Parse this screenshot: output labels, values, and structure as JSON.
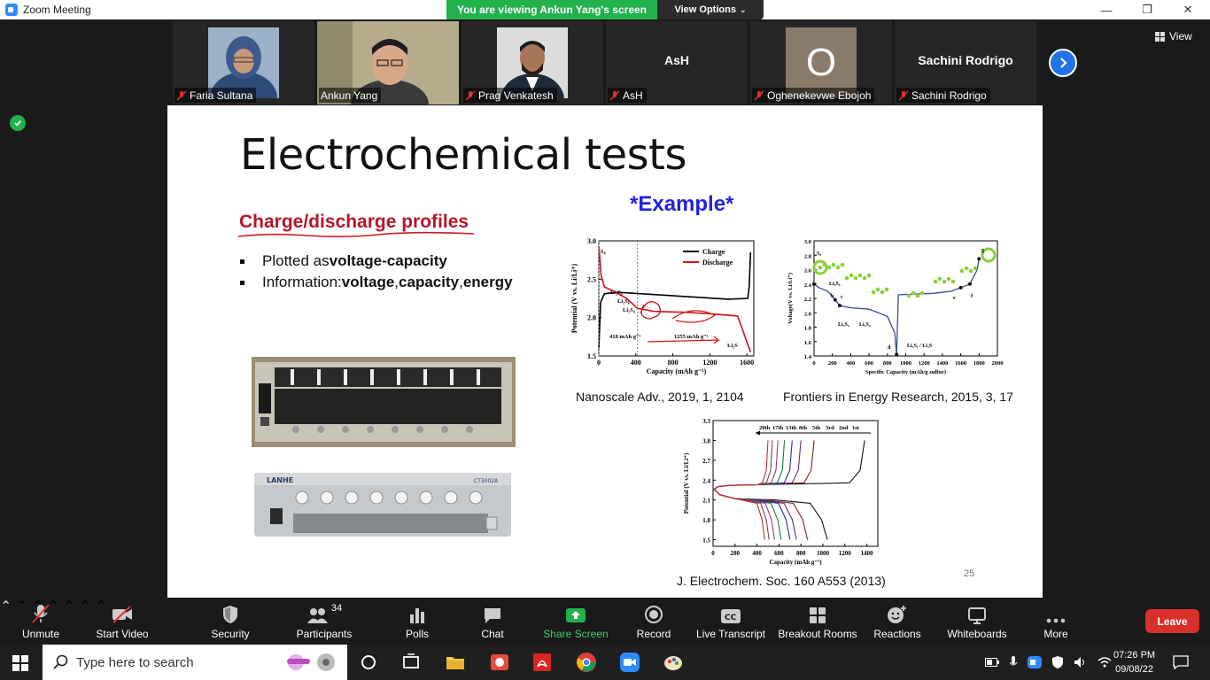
{
  "window": {
    "title": "Zoom Meeting",
    "viewing_banner": "You are viewing Ankun Yang's screen",
    "view_options": "View Options",
    "minimize": "—",
    "maximize": "❐",
    "close": "✕"
  },
  "gallery": {
    "view_label": "View",
    "participants": [
      {
        "name": "Faria Sultana",
        "muted": true
      },
      {
        "name": "Ankun Yang",
        "muted": false
      },
      {
        "name": "Prag Venkatesh",
        "muted": true
      },
      {
        "name": "AsH",
        "muted": true,
        "center_name": "AsH"
      },
      {
        "name": "Oghenekevwe Ebojoh",
        "muted": true,
        "initial": "O"
      },
      {
        "name": "Sachini Rodrigo",
        "muted": true,
        "center_name": "Sachini Rodrigo"
      }
    ]
  },
  "slide": {
    "title": "Electrochemical tests",
    "example_label": "*Example*",
    "section_heading": "Charge/discharge profiles",
    "bullets": [
      {
        "prefix": "Plotted as ",
        "bold": "voltage-capacity"
      },
      {
        "prefix": "Information: ",
        "bold1": "voltage",
        "sep1": ", ",
        "bold2": "capacity",
        "sep2": ", ",
        "bold3": "energy"
      }
    ],
    "captions": {
      "fig1": "Nanoscale Adv., 2019, 1, 2104",
      "fig2": "Frontiers in Energy Research, 2015, 3, 17",
      "fig3": "J. Electrochem. Soc. 160 A553 (2013)"
    },
    "page_number": "25",
    "device_brand": "LANHE",
    "device_model": "CT3002A"
  },
  "chart_data": [
    {
      "type": "line",
      "xlabel": "Capacity (mAh g⁻¹)",
      "ylabel": "Potential (V vs. Li/Li⁺)",
      "xlim": [
        0,
        1675
      ],
      "ylim": [
        1.5,
        3.0
      ],
      "xticks": [
        "0",
        "400",
        "800",
        "1200",
        "1600"
      ],
      "yticks": [
        "1.5",
        "2.0",
        "2.5",
        "3.0"
      ],
      "legend_placement": "top-right",
      "series": [
        {
          "name": "Charge",
          "color": "#000000",
          "x": [
            0,
            20,
            60,
            200,
            600,
            1000,
            1400,
            1610,
            1625,
            1640
          ],
          "y": [
            1.6,
            2.2,
            2.31,
            2.33,
            2.3,
            2.27,
            2.24,
            2.25,
            2.4,
            2.85
          ]
        },
        {
          "name": "Discharge",
          "color": "#d4101a",
          "x": [
            0,
            10,
            25,
            60,
            150,
            300,
            418,
            600,
            900,
            1200,
            1500,
            1640
          ],
          "y": [
            2.92,
            2.8,
            2.55,
            2.4,
            2.35,
            2.25,
            2.12,
            2.08,
            2.07,
            2.05,
            2.02,
            1.55
          ]
        }
      ],
      "annotations": [
        "S₈",
        "Li₂S₈",
        "Li₂S₆",
        "Li₂S₄",
        "Li₂S",
        "418 mAh g⁻¹",
        "1255 mAh g⁻¹"
      ]
    },
    {
      "type": "line",
      "xlabel": "Specific Capacity (mAh/g sulfur)",
      "ylabel": "Voltage(V vs. Li/Li⁺)",
      "xlim": [
        0,
        2000
      ],
      "ylim": [
        1.4,
        3.0
      ],
      "xticks": [
        "0",
        "200",
        "400",
        "600",
        "800",
        "1000",
        "1200",
        "1400",
        "1600",
        "1800",
        "2000"
      ],
      "yticks": [
        "1.4",
        "1.6",
        "1.8",
        "2.0",
        "2.2",
        "2.4",
        "2.6",
        "2.8",
        "3.0"
      ],
      "series": [
        {
          "name": "",
          "color": "#3a4a9a",
          "x": [
            0,
            50,
            150,
            230,
            280,
            400,
            600,
            800,
            880,
            900,
            920,
            1100,
            1300,
            1500,
            1600,
            1700,
            1780,
            1800
          ],
          "y": [
            2.4,
            2.35,
            2.3,
            2.18,
            2.1,
            2.07,
            2.05,
            1.95,
            1.72,
            1.42,
            2.25,
            2.26,
            2.27,
            2.3,
            2.35,
            2.4,
            2.6,
            2.75
          ]
        }
      ],
      "annotations": [
        "S₈",
        "Li₂S₈",
        "b",
        "c",
        "Li₂S₆",
        "Li₂S₄",
        "d",
        "Li₂S₂ / Li₂S",
        "e",
        "f",
        "g"
      ]
    },
    {
      "type": "line",
      "xlabel": "Capacity (mAh g⁻¹)",
      "ylabel": "Potential (V vs. Li/Li⁺)",
      "xlim": [
        0,
        1500
      ],
      "ylim": [
        1.4,
        3.3
      ],
      "xticks": [
        "0",
        "200",
        "400",
        "600",
        "800",
        "1000",
        "1200",
        "1400"
      ],
      "yticks": [
        "1.5",
        "1.8",
        "2.1",
        "2.4",
        "2.7",
        "3.0",
        "3.3"
      ],
      "cycle_labels": [
        "20th",
        "17th",
        "13th",
        "8th",
        "5th",
        "3rd",
        "2nd",
        "1st"
      ],
      "series": [
        {
          "name": "1st",
          "color": "#111111",
          "charge_end": 1380,
          "discharge_end": 1040
        },
        {
          "name": "2nd",
          "color": "#8b1a1a",
          "charge_end": 920,
          "discharge_end": 860
        },
        {
          "name": "3rd",
          "color": "#6a2a8a",
          "charge_end": 800,
          "discharge_end": 760
        },
        {
          "name": "5th",
          "color": "#2a2a9a",
          "charge_end": 720,
          "discharge_end": 700
        },
        {
          "name": "8th",
          "color": "#1a7a3a",
          "charge_end": 650,
          "discharge_end": 620
        },
        {
          "name": "13th",
          "color": "#aa3377",
          "charge_end": 590,
          "discharge_end": 560
        },
        {
          "name": "17th",
          "color": "#555555",
          "charge_end": 540,
          "discharge_end": 510
        },
        {
          "name": "20th",
          "color": "#cc2a2a",
          "charge_end": 500,
          "discharge_end": 470
        }
      ]
    }
  ],
  "toolbar": {
    "items": [
      "Unmute",
      "Start Video",
      "Security",
      "Participants",
      "Polls",
      "Chat",
      "Share Screen",
      "Record",
      "Live Transcript",
      "Breakout Rooms",
      "Reactions",
      "Whiteboards",
      "More"
    ],
    "participant_count": "34",
    "leave": "Leave",
    "share_color": "#23b14d"
  },
  "taskbar": {
    "search_placeholder": "Type here to search",
    "time": "07:26 PM",
    "date": "09/08/22"
  }
}
